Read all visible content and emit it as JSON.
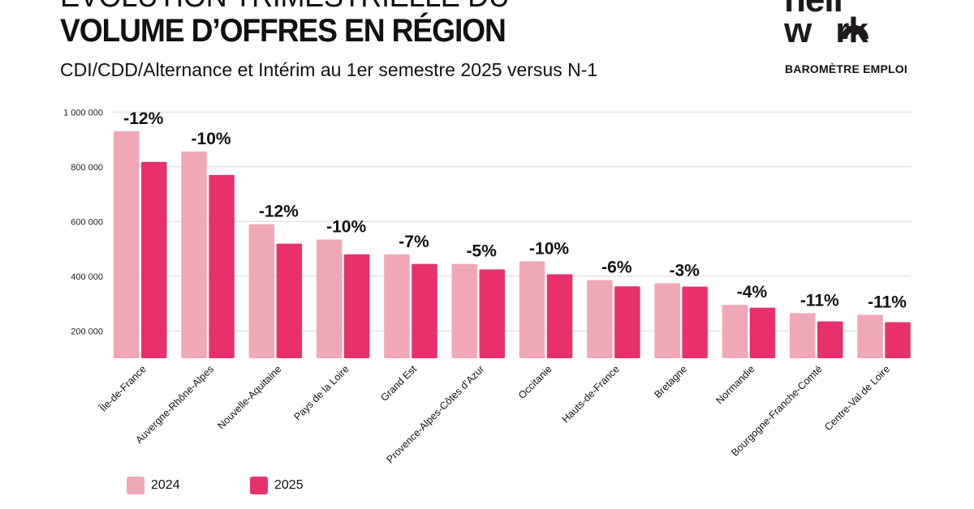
{
  "header": {
    "title_line1": "ÉVOLUTION TRIMESTRIELLE DU",
    "title_line2": "VOLUME D’OFFRES EN RÉGION",
    "subtitle": "CDI/CDD/Alternance et Intérim au 1er semestre 2025 versus N-1"
  },
  "brand": {
    "logo_text_line1": "hell",
    "logo_text_line2": "wrk",
    "logo_full": "hellowork",
    "tagline": "BAROMÈTRE EMPLOI"
  },
  "colors": {
    "series_2024": "#F0A7B6",
    "series_2025": "#E8316B",
    "grid": "#d9d9d9",
    "text": "#111111"
  },
  "chart_data": {
    "type": "bar",
    "title": "VOLUME D’OFFRES EN RÉGION",
    "xlabel": "",
    "ylabel": "",
    "ylim": [
      100000,
      1000000
    ],
    "yticks": [
      200000,
      400000,
      600000,
      800000,
      1000000
    ],
    "ytick_labels": [
      "200 000",
      "400 000",
      "600 000",
      "800 000",
      "1 000 000"
    ],
    "grid": true,
    "legend_position": "bottom-left",
    "categories": [
      "Île-de-France",
      "Auvergne-Rhône-Alpes",
      "Nouvelle-Aquitaine",
      "Pays de la Loire",
      "Grand Est",
      "Provence-Alpes-Côtes d’Azur",
      "Occitanie",
      "Hauts-de-France",
      "Bretagne",
      "Normandie",
      "Bourgogne-Franche-Comté",
      "Centre-Val de Loire"
    ],
    "series": [
      {
        "name": "2024",
        "values": [
          930000,
          856000,
          590000,
          534000,
          480000,
          445000,
          454000,
          386000,
          374000,
          295000,
          265000,
          259000
        ]
      },
      {
        "name": "2025",
        "values": [
          818000,
          770000,
          519000,
          480000,
          445000,
          425000,
          407000,
          363000,
          362000,
          285000,
          235000,
          232000
        ]
      }
    ],
    "annotations": [
      "-12%",
      "-10%",
      "-12%",
      "-10%",
      "-7%",
      "-5%",
      "-10%",
      "-6%",
      "-3%",
      "-4%",
      "-11%",
      "-11%"
    ]
  }
}
